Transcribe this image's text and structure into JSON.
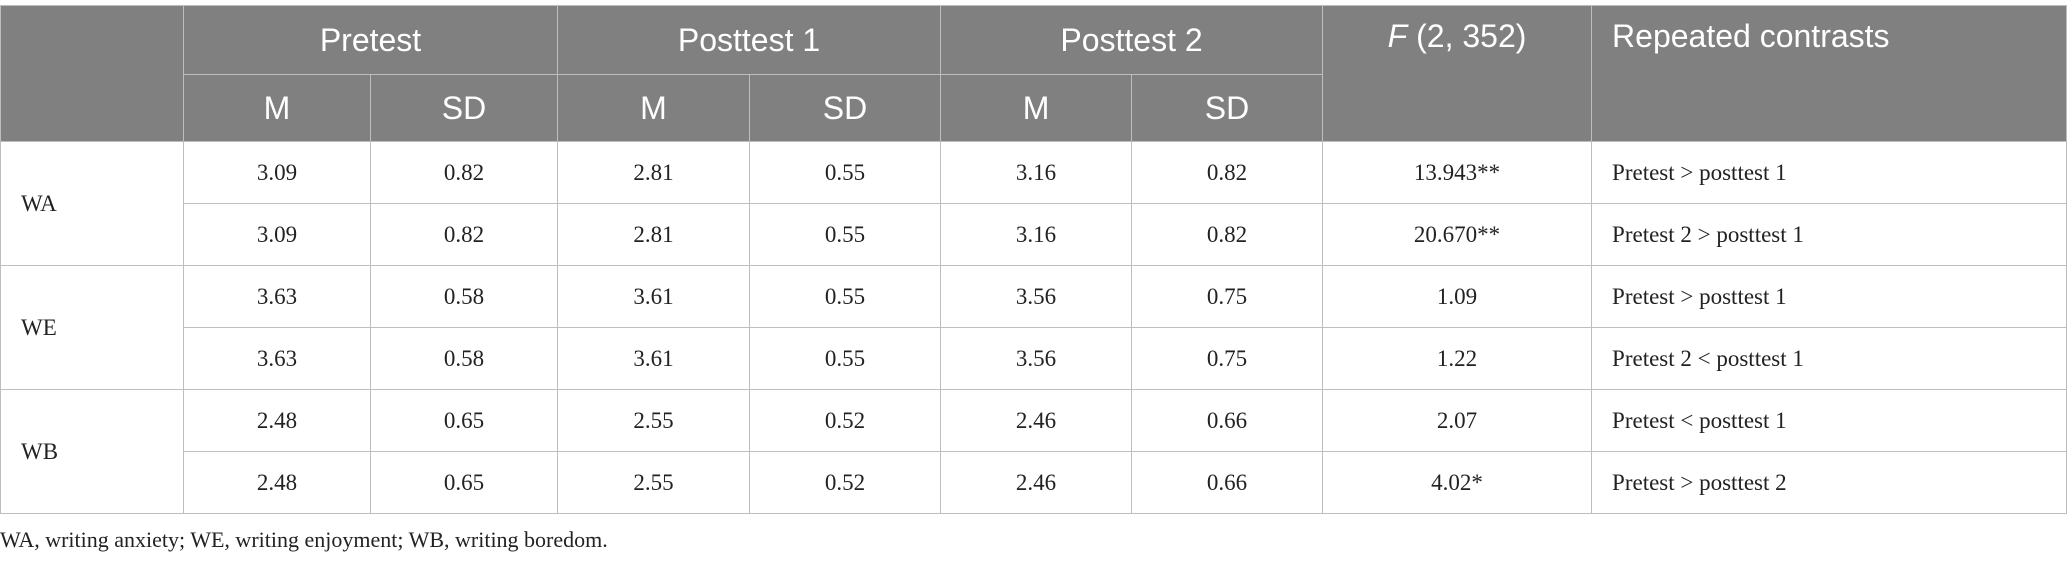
{
  "table": {
    "header": {
      "groups": [
        "Pretest",
        "Posttest 1",
        "Posttest 2"
      ],
      "f_stat": {
        "italic": "F",
        "rest": " (2, 352)"
      },
      "contrasts": "Repeated contrasts",
      "sub": [
        "M",
        "SD",
        "M",
        "SD",
        "M",
        "SD"
      ]
    },
    "blocks": [
      {
        "label": "WA",
        "rows": [
          [
            "3.09",
            "0.82",
            "2.81",
            "0.55",
            "3.16",
            "0.82",
            "13.943**",
            "Pretest > posttest 1"
          ],
          [
            "3.09",
            "0.82",
            "2.81",
            "0.55",
            "3.16",
            "0.82",
            "20.670**",
            "Pretest 2 > posttest 1"
          ]
        ]
      },
      {
        "label": "WE",
        "rows": [
          [
            "3.63",
            "0.58",
            "3.61",
            "0.55",
            "3.56",
            "0.75",
            "1.09",
            "Pretest > posttest 1"
          ],
          [
            "3.63",
            "0.58",
            "3.61",
            "0.55",
            "3.56",
            "0.75",
            "1.22",
            "Pretest 2 < posttest 1"
          ]
        ]
      },
      {
        "label": "WB",
        "rows": [
          [
            "2.48",
            "0.65",
            "2.55",
            "0.52",
            "2.46",
            "0.66",
            "2.07",
            "Pretest < posttest 1"
          ],
          [
            "2.48",
            "0.65",
            "2.55",
            "0.52",
            "2.46",
            "0.66",
            "4.02*",
            "Pretest > posttest 2"
          ]
        ]
      }
    ],
    "footnote": "WA, writing anxiety; WE, writing enjoyment; WB, writing boredom."
  }
}
